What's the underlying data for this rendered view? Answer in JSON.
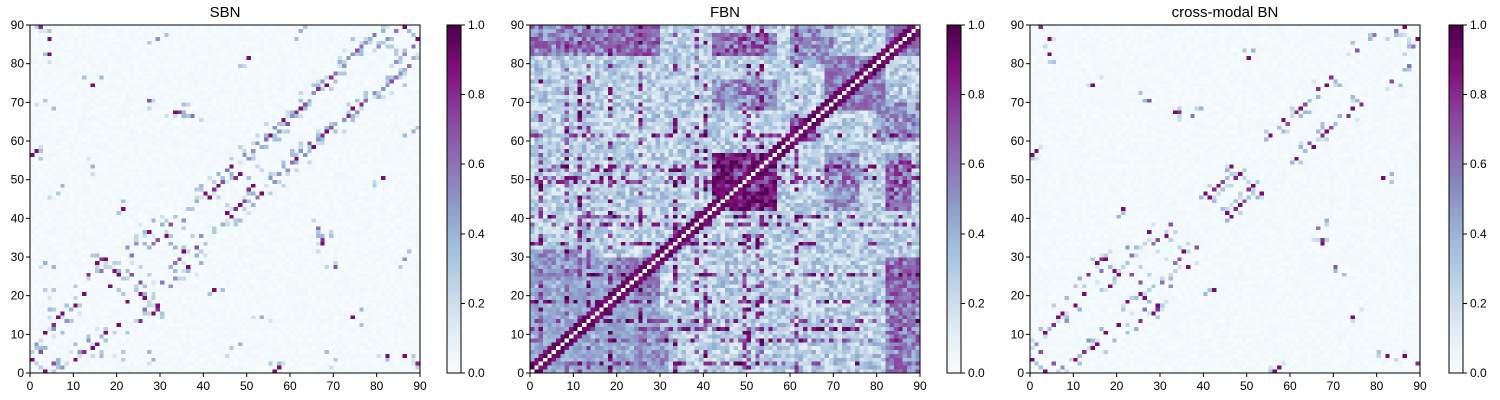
{
  "colors": {
    "colormap": [
      "#f7fcfd",
      "#e0ecf4",
      "#bfd3e6",
      "#9ebcda",
      "#8c96c6",
      "#8c6bb1",
      "#88419d",
      "#810f7c",
      "#4d004b"
    ],
    "axes_frame": "#000000"
  },
  "chart_data": [
    {
      "type": "heatmap",
      "title": "SBN",
      "xlim": [
        0,
        90
      ],
      "ylim": [
        0,
        90
      ],
      "xticks": [
        "0",
        "10",
        "20",
        "30",
        "40",
        "50",
        "60",
        "70",
        "80",
        "90"
      ],
      "yticks": [
        "0",
        "10",
        "20",
        "30",
        "40",
        "50",
        "60",
        "70",
        "80",
        "90"
      ],
      "colorbar": {
        "range": [
          0,
          1
        ],
        "ticks": [
          "0.0",
          "0.2",
          "0.4",
          "0.6",
          "0.8",
          "1.0"
        ]
      },
      "matrix_size": 90,
      "symmetric": true,
      "background_value": 0.02,
      "cells": [
        [
          0,
          3,
          0.9
        ],
        [
          0,
          56,
          0.9
        ],
        [
          1,
          7,
          0.5
        ],
        [
          1,
          57,
          0.9
        ],
        [
          2,
          5,
          0.7
        ],
        [
          2,
          89,
          0.8
        ],
        [
          3,
          10,
          0.9
        ],
        [
          3,
          28,
          0.4
        ],
        [
          4,
          86,
          0.9
        ],
        [
          4,
          82,
          0.9
        ],
        [
          5,
          12,
          0.8
        ],
        [
          5,
          21,
          0.3
        ],
        [
          6,
          14,
          0.9
        ],
        [
          7,
          15,
          0.9
        ],
        [
          8,
          13,
          0.5
        ],
        [
          9,
          16,
          0.4
        ],
        [
          10,
          17,
          0.9
        ],
        [
          11,
          5,
          0.5
        ],
        [
          12,
          20,
          0.9
        ],
        [
          13,
          25,
          0.8
        ],
        [
          14,
          74,
          0.9
        ],
        [
          15,
          28,
          0.9
        ],
        [
          16,
          29,
          0.8
        ],
        [
          17,
          29,
          0.9
        ],
        [
          18,
          22,
          0.9
        ],
        [
          19,
          26,
          0.9
        ],
        [
          20,
          25,
          0.9
        ],
        [
          21,
          42,
          0.9
        ],
        [
          22,
          32,
          0.5
        ],
        [
          23,
          30,
          0.6
        ],
        [
          24,
          33,
          0.5
        ],
        [
          25,
          23,
          0.7
        ],
        [
          26,
          20,
          0.4
        ],
        [
          27,
          36,
          0.9
        ],
        [
          28,
          33,
          0.6
        ],
        [
          29,
          34,
          0.7
        ],
        [
          30,
          38,
          0.4
        ],
        [
          31,
          35,
          0.9
        ],
        [
          32,
          38,
          0.7
        ],
        [
          33,
          67,
          0.9
        ],
        [
          34,
          67,
          0.8
        ],
        [
          35,
          39,
          0.5
        ],
        [
          36,
          42,
          0.3
        ],
        [
          38,
          47,
          0.3
        ],
        [
          40,
          46,
          0.9
        ],
        [
          41,
          45,
          0.9
        ],
        [
          42,
          47,
          0.8
        ],
        [
          43,
          48,
          0.9
        ],
        [
          44,
          49,
          0.7
        ],
        [
          45,
          52,
          0.6
        ],
        [
          46,
          53,
          0.9
        ],
        [
          47,
          50,
          0.8
        ],
        [
          48,
          51,
          0.9
        ],
        [
          49,
          56,
          0.5
        ],
        [
          50,
          55,
          0.5
        ],
        [
          51,
          57,
          0.5
        ],
        [
          52,
          59,
          0.5
        ],
        [
          53,
          58,
          0.4
        ],
        [
          54,
          60,
          0.6
        ],
        [
          55,
          61,
          0.9
        ],
        [
          56,
          63,
          0.5
        ],
        [
          57,
          62,
          0.5
        ],
        [
          58,
          65,
          0.9
        ],
        [
          59,
          64,
          0.7
        ],
        [
          60,
          66,
          0.5
        ],
        [
          61,
          67,
          0.8
        ],
        [
          62,
          68,
          0.9
        ],
        [
          63,
          69,
          0.7
        ],
        [
          64,
          70,
          0.4
        ],
        [
          65,
          72,
          0.5
        ],
        [
          66,
          73,
          0.8
        ],
        [
          67,
          75,
          0.5
        ],
        [
          68,
          74,
          0.9
        ],
        [
          69,
          76,
          0.8
        ],
        [
          70,
          77,
          0.6
        ],
        [
          71,
          80,
          0.4
        ],
        [
          72,
          79,
          0.5
        ],
        [
          73,
          81,
          0.5
        ],
        [
          74,
          82,
          0.5
        ],
        [
          75,
          83,
          0.7
        ],
        [
          76,
          84,
          0.6
        ],
        [
          77,
          85,
          0.5
        ],
        [
          78,
          86,
          0.4
        ],
        [
          79,
          87,
          0.6
        ],
        [
          80,
          84,
          0.5
        ],
        [
          81,
          88,
          0.4
        ],
        [
          82,
          86,
          0.5
        ],
        [
          84,
          88,
          0.6
        ],
        [
          86,
          89,
          0.9
        ],
        [
          29,
          86,
          0.5
        ],
        [
          27,
          70,
          0.7
        ],
        [
          37,
          66,
          0.6
        ],
        [
          33,
          67,
          0.9
        ],
        [
          50,
          81,
          0.9
        ],
        [
          14,
          53,
          0.4
        ],
        [
          6,
          46,
          0.3
        ],
        [
          3,
          70,
          0.3
        ],
        [
          88,
          62,
          0.4
        ],
        [
          16,
          26,
          0.6
        ]
      ]
    },
    {
      "type": "heatmap",
      "title": "FBN",
      "xlim": [
        0,
        90
      ],
      "ylim": [
        0,
        90
      ],
      "xticks": [
        "0",
        "10",
        "20",
        "30",
        "40",
        "50",
        "60",
        "70",
        "80",
        "90"
      ],
      "yticks": [
        "0",
        "10",
        "20",
        "30",
        "40",
        "50",
        "60",
        "70",
        "80",
        "90"
      ],
      "colorbar": {
        "range": [
          0,
          1
        ],
        "ticks": [
          "0.0",
          "0.2",
          "0.4",
          "0.6",
          "0.8",
          "1.0"
        ]
      },
      "matrix_size": 90,
      "symmetric": true,
      "diagonal_value": 0.0,
      "blocks": [
        {
          "from": 42,
          "to": 57,
          "value": 0.82
        },
        {
          "from": 60,
          "to": 66,
          "value": 0.72
        },
        {
          "from": 68,
          "to": 82,
          "value": 0.55
        },
        {
          "from": 0,
          "to": 30,
          "value": 0.42
        },
        {
          "from": 20,
          "to": 30,
          "value": 0.6
        },
        {
          "from": 82,
          "to": 90,
          "value": 0.55
        }
      ],
      "offblocks": [
        {
          "r": [
            42,
            57
          ],
          "c": [
            82,
            88
          ],
          "value": 0.7
        },
        {
          "r": [
            42,
            57
          ],
          "c": [
            68,
            76
          ],
          "value": 0.55
        },
        {
          "r": [
            0,
            30
          ],
          "c": [
            82,
            90
          ],
          "value": 0.6
        },
        {
          "r": [
            0,
            12
          ],
          "c": [
            24,
            32
          ],
          "value": 0.5
        },
        {
          "r": [
            60,
            70
          ],
          "c": [
            80,
            90
          ],
          "value": 0.55
        },
        {
          "r": [
            20,
            30
          ],
          "c": [
            82,
            90
          ],
          "value": 0.65
        }
      ],
      "base_value": 0.3
    },
    {
      "type": "heatmap",
      "title": "cross-modal BN",
      "xlim": [
        0,
        90
      ],
      "ylim": [
        0,
        90
      ],
      "xticks": [
        "0",
        "10",
        "20",
        "30",
        "40",
        "50",
        "60",
        "70",
        "80",
        "90"
      ],
      "yticks": [
        "0",
        "10",
        "20",
        "30",
        "40",
        "50",
        "60",
        "70",
        "80",
        "90"
      ],
      "colorbar": {
        "range": [
          0,
          1
        ],
        "ticks": [
          "0.0",
          "0.2",
          "0.4",
          "0.6",
          "0.8",
          "1.0"
        ]
      },
      "matrix_size": 90,
      "symmetric": true,
      "background_value": 0.02,
      "cells": [
        [
          0,
          3,
          0.9
        ],
        [
          0,
          56,
          0.9
        ],
        [
          1,
          7,
          0.5
        ],
        [
          1,
          57,
          0.9
        ],
        [
          2,
          5,
          0.7
        ],
        [
          2,
          89,
          0.8
        ],
        [
          3,
          10,
          0.9
        ],
        [
          4,
          86,
          0.9
        ],
        [
          4,
          82,
          0.9
        ],
        [
          5,
          12,
          0.8
        ],
        [
          6,
          14,
          0.9
        ],
        [
          7,
          15,
          0.9
        ],
        [
          8,
          13,
          0.5
        ],
        [
          10,
          17,
          0.9
        ],
        [
          12,
          20,
          0.9
        ],
        [
          13,
          25,
          0.8
        ],
        [
          14,
          74,
          0.9
        ],
        [
          15,
          28,
          0.9
        ],
        [
          16,
          29,
          0.8
        ],
        [
          17,
          29,
          0.9
        ],
        [
          18,
          22,
          0.9
        ],
        [
          19,
          26,
          0.9
        ],
        [
          20,
          25,
          0.9
        ],
        [
          21,
          42,
          0.9
        ],
        [
          22,
          32,
          0.5
        ],
        [
          23,
          30,
          0.6
        ],
        [
          25,
          23,
          0.7
        ],
        [
          27,
          36,
          0.9
        ],
        [
          28,
          33,
          0.6
        ],
        [
          29,
          34,
          0.7
        ],
        [
          31,
          35,
          0.9
        ],
        [
          32,
          38,
          0.7
        ],
        [
          33,
          67,
          0.9
        ],
        [
          34,
          67,
          0.8
        ],
        [
          40,
          46,
          0.9
        ],
        [
          41,
          45,
          0.9
        ],
        [
          42,
          47,
          0.8
        ],
        [
          43,
          48,
          0.9
        ],
        [
          44,
          49,
          0.7
        ],
        [
          46,
          53,
          0.9
        ],
        [
          47,
          50,
          0.8
        ],
        [
          48,
          51,
          0.9
        ],
        [
          55,
          61,
          0.9
        ],
        [
          58,
          65,
          0.9
        ],
        [
          59,
          64,
          0.7
        ],
        [
          61,
          67,
          0.8
        ],
        [
          62,
          68,
          0.9
        ],
        [
          63,
          69,
          0.7
        ],
        [
          66,
          73,
          0.8
        ],
        [
          68,
          74,
          0.9
        ],
        [
          69,
          76,
          0.8
        ],
        [
          75,
          83,
          0.7
        ],
        [
          86,
          89,
          0.9
        ],
        [
          27,
          70,
          0.7
        ],
        [
          37,
          66,
          0.6
        ],
        [
          50,
          81,
          0.9
        ],
        [
          16,
          26,
          0.6
        ],
        [
          79,
          87,
          0.6
        ],
        [
          84,
          88,
          0.6
        ]
      ]
    }
  ]
}
